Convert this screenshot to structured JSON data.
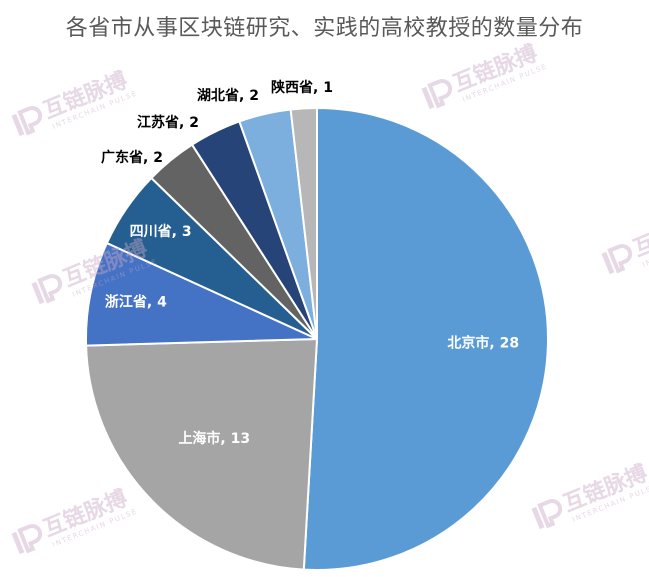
{
  "chart_data": {
    "type": "pie",
    "title": "各省市从事区块链研究、实践的高校教授的数量分布",
    "slices": [
      {
        "label": "北京市",
        "value": 28,
        "color": "#5b9bd5",
        "label_color": "#ffffff"
      },
      {
        "label": "上海市",
        "value": 13,
        "color": "#a5a5a5",
        "label_color": "#ffffff"
      },
      {
        "label": "浙江省",
        "value": 4,
        "color": "#4472c4",
        "label_color": "#ffffff"
      },
      {
        "label": "四川省",
        "value": 3,
        "color": "#255e91",
        "label_color": "#ffffff"
      },
      {
        "label": "广东省",
        "value": 2,
        "color": "#636363",
        "label_color": "#000000"
      },
      {
        "label": "江苏省",
        "value": 2,
        "color": "#264478",
        "label_color": "#000000"
      },
      {
        "label": "湖北省",
        "value": 2,
        "color": "#7cafdd",
        "label_color": "#000000"
      },
      {
        "label": "陕西省",
        "value": 1,
        "color": "#b7b7b7",
        "label_color": "#000000"
      }
    ],
    "label_format": "{label}, {value}",
    "start_angle_deg": 0,
    "direction": "clockwise"
  },
  "watermark": {
    "brand": "互链脉搏",
    "sub": "INTERCHAIN PULSE",
    "logo_icon": "ip-logo-icon",
    "color": "#c9a7c7"
  }
}
